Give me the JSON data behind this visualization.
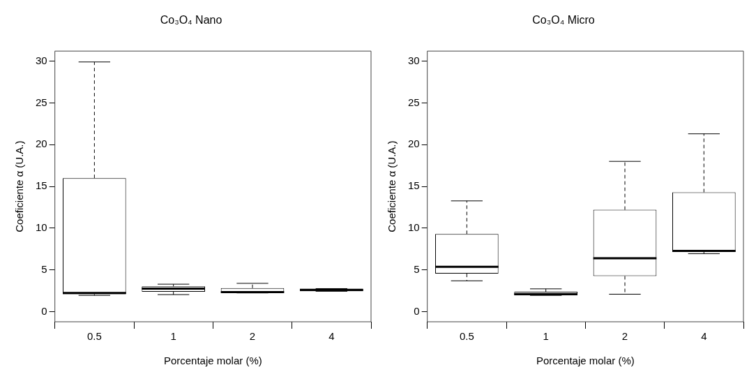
{
  "chart_data": [
    {
      "type": "box",
      "title": "Co₃O₄ Nano",
      "xlabel": "Porcentaje molar (%)",
      "ylabel": "Coeficiente α (U.A.)",
      "categories": [
        "0.5",
        "1",
        "2",
        "4"
      ],
      "ylim": [
        -1.2,
        31.2
      ],
      "yticks": [
        0,
        5,
        10,
        15,
        20,
        25,
        30
      ],
      "grid": false,
      "legend": false,
      "boxes": [
        {
          "low": 1.96,
          "q1": 2.1,
          "median": 2.25,
          "q3": 16.0,
          "high": 29.9
        },
        {
          "low": 2.05,
          "q1": 2.4,
          "median": 2.77,
          "q3": 3.03,
          "high": 3.3
        },
        {
          "low": 2.25,
          "q1": 2.25,
          "median": 2.35,
          "q3": 2.83,
          "high": 3.4
        },
        {
          "low": 2.45,
          "q1": 2.45,
          "median": 2.6,
          "q3": 2.77,
          "high": 2.77
        }
      ]
    },
    {
      "type": "box",
      "title": "Co₃O₄ Micro",
      "xlabel": "Porcentaje molar (%)",
      "ylabel": "Coeficiente α (U.A.)",
      "categories": [
        "0.5",
        "1",
        "2",
        "4"
      ],
      "ylim": [
        -1.2,
        31.2
      ],
      "yticks": [
        0,
        5,
        10,
        15,
        20,
        25,
        30
      ],
      "grid": false,
      "legend": false,
      "boxes": [
        {
          "low": 3.7,
          "q1": 4.56,
          "median": 5.37,
          "q3": 9.3,
          "high": 13.27
        },
        {
          "low": 1.96,
          "q1": 1.96,
          "median": 2.1,
          "q3": 2.4,
          "high": 2.74
        },
        {
          "low": 2.1,
          "q1": 4.27,
          "median": 6.4,
          "q3": 12.2,
          "high": 18.0
        },
        {
          "low": 6.95,
          "q1": 7.15,
          "median": 7.27,
          "q3": 14.3,
          "high": 21.3
        }
      ]
    }
  ]
}
